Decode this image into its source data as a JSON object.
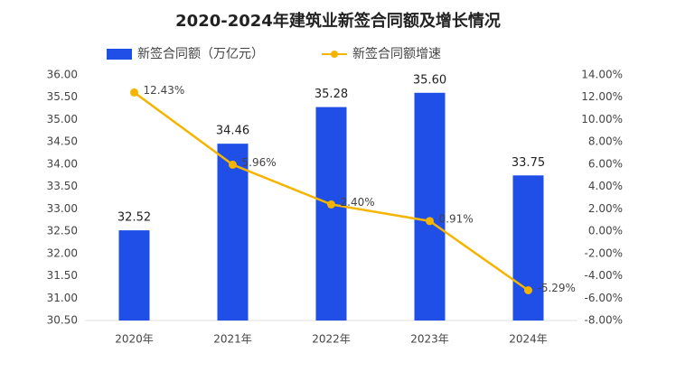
{
  "chart_data": {
    "type": "bar",
    "title": "2020-2024年建筑业新签合同额及增长情况",
    "categories": [
      "2020年",
      "2021年",
      "2022年",
      "2023年",
      "2024年"
    ],
    "series": [
      {
        "name": "新签合同额（万亿元）",
        "type": "bar",
        "color": "#1f4fe6",
        "values": [
          32.52,
          34.46,
          35.28,
          35.6,
          33.75
        ],
        "value_labels": [
          "32.52",
          "34.46",
          "35.28",
          "35.60",
          "33.75"
        ]
      },
      {
        "name": "新签合同额增速",
        "type": "line",
        "axis": "y2",
        "color": "#f5b400",
        "values": [
          12.43,
          5.96,
          2.4,
          0.91,
          -5.29
        ],
        "value_labels": [
          "12.43%",
          "5.96%",
          "2.40%",
          "0.91%",
          "-5.29%"
        ]
      }
    ],
    "ylim": [
      30.5,
      36
    ],
    "yticks": [
      {
        "value": 30.5,
        "label": "30.50"
      },
      {
        "value": 31,
        "label": "31.00"
      },
      {
        "value": 31.5,
        "label": "31.50"
      },
      {
        "value": 32,
        "label": "32.00"
      },
      {
        "value": 32.5,
        "label": "32.50"
      },
      {
        "value": 33,
        "label": "33.00"
      },
      {
        "value": 33.5,
        "label": "33.50"
      },
      {
        "value": 34,
        "label": "34.00"
      },
      {
        "value": 34.5,
        "label": "34.50"
      },
      {
        "value": 35,
        "label": "35.00"
      },
      {
        "value": 35.5,
        "label": "35.50"
      },
      {
        "value": 36,
        "label": "36.00"
      }
    ],
    "y2lim": [
      -8,
      14
    ],
    "y2ticks": [
      {
        "value": -8,
        "label": "-8.00%"
      },
      {
        "value": -6,
        "label": "-6.00%"
      },
      {
        "value": -4,
        "label": "-4.00%"
      },
      {
        "value": -2,
        "label": "-2.00%"
      },
      {
        "value": 0,
        "label": "0.00%"
      },
      {
        "value": 2,
        "label": "2.00%"
      },
      {
        "value": 4,
        "label": "4.00%"
      },
      {
        "value": 6,
        "label": "6.00%"
      },
      {
        "value": 8,
        "label": "8.00%"
      },
      {
        "value": 10,
        "label": "10.00%"
      },
      {
        "value": 12,
        "label": "12.00%"
      },
      {
        "value": 14,
        "label": "14.00%"
      }
    ],
    "grid": false,
    "legend": "top"
  }
}
